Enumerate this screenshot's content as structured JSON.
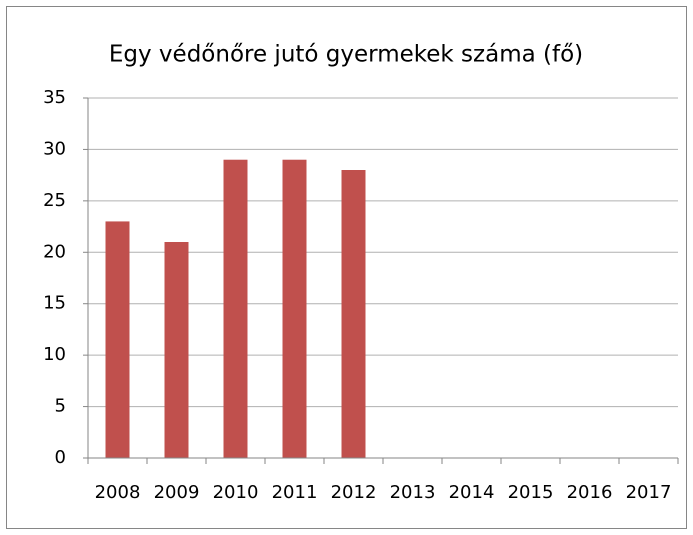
{
  "chart_data": {
    "type": "bar",
    "title": "Egy védőnőre jutó gyermekek száma (fő)",
    "categories": [
      "2008",
      "2009",
      "2010",
      "2011",
      "2012",
      "2013",
      "2014",
      "2015",
      "2016",
      "2017"
    ],
    "values": [
      23,
      21,
      29,
      29,
      28,
      null,
      null,
      null,
      null,
      null
    ],
    "color": "#c0504d",
    "ylim": [
      0,
      35
    ],
    "yticks": [
      0,
      5,
      10,
      15,
      20,
      25,
      30,
      35
    ],
    "grid": true
  }
}
